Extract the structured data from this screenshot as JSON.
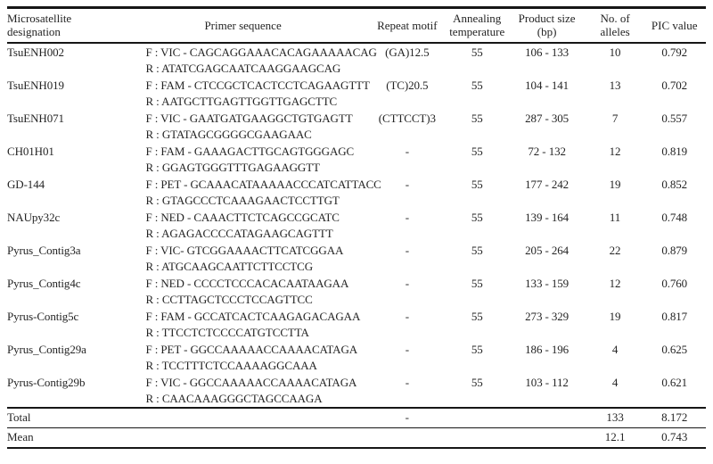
{
  "table": {
    "header": {
      "designation": "Microsatellite\ndesignation",
      "primer": "Primer sequence",
      "motif": "Repeat motif",
      "temperature": "Annealing\ntemperature",
      "product_size": "Product size\n(bp)",
      "alleles": "No. of\nalleles",
      "pic": "PIC value"
    },
    "rows": [
      {
        "designation": "TsuENH002",
        "forward": "F : VIC - CAGCAGGAAACACAGAAAAACAG",
        "reverse": "R : ATATCGAGCAATCAAGGAAGCAG",
        "motif": "(GA)12.5",
        "temperature": "55",
        "product_size": "106 - 133",
        "alleles": "10",
        "pic": "0.792"
      },
      {
        "designation": "TsuENH019",
        "forward": "F : FAM - CTCCGCTCACTCCTCAGAAGTTT",
        "reverse": "R : AATGCTTGAGTTGGTTGAGCTTC",
        "motif": "(TC)20.5",
        "temperature": "55",
        "product_size": "104 - 141",
        "alleles": "13",
        "pic": "0.702"
      },
      {
        "designation": "TsuENH071",
        "forward": "F : VIC - GAATGATGAAGGCTGTGAGTT",
        "reverse": "R : GTATAGCGGGGCGAAGAAC",
        "motif": "(CTTCCT)3",
        "temperature": "55",
        "product_size": "287 - 305",
        "alleles": "7",
        "pic": "0.557"
      },
      {
        "designation": "CH01H01",
        "forward": "F : FAM - GAAAGACTTGCAGTGGGAGC",
        "reverse": "R : GGAGTGGGTTTGAGAAGGTT",
        "motif": "-",
        "temperature": "55",
        "product_size": "72 - 132",
        "alleles": "12",
        "pic": "0.819"
      },
      {
        "designation": "GD-144",
        "forward": "F : PET - GCAAACATAAAAACCCATCATTACC",
        "reverse": "R : GTAGCCCTCAAAGAACTCCTTGT",
        "motif": "-",
        "temperature": "55",
        "product_size": "177 - 242",
        "alleles": "19",
        "pic": "0.852"
      },
      {
        "designation": "NAUpy32c",
        "forward": "F : NED - CAAACTTCTCAGCCGCATC",
        "reverse": "R : AGAGACCCCATAGAAGCAGTTT",
        "motif": "-",
        "temperature": "55",
        "product_size": "139 - 164",
        "alleles": "11",
        "pic": "0.748"
      },
      {
        "designation": "Pyrus_Contig3a",
        "forward": "F : VIC- GTCGGAAAACTTCATCGGAA",
        "reverse": "R : ATGCAAGCAATTCTTCCTCG",
        "motif": "-",
        "temperature": "55",
        "product_size": "205 - 264",
        "alleles": "22",
        "pic": "0.879"
      },
      {
        "designation": "Pyrus_Contig4c",
        "forward": "F : NED - CCCCTCCCACACAATAAGAA",
        "reverse": "R : CCTTAGCTCCCTCCAGTTCC",
        "motif": "-",
        "temperature": "55",
        "product_size": "133 - 159",
        "alleles": "12",
        "pic": "0.760"
      },
      {
        "designation": "Pyrus-Contig5c",
        "forward": "F : FAM - GCCATCACTCAAGAGACAGAA",
        "reverse": "R : TTCCTCTCCCCATGTCCTTA",
        "motif": "-",
        "temperature": "55",
        "product_size": "273 - 329",
        "alleles": "19",
        "pic": "0.817"
      },
      {
        "designation": "Pyrus_Contig29a",
        "forward": "F : PET - GGCCAAAAACCAAAACATAGA",
        "reverse": "R : TCCTTTCTCCAAAAGGCAAA",
        "motif": "-",
        "temperature": "55",
        "product_size": "186 - 196",
        "alleles": "4",
        "pic": "0.625"
      },
      {
        "designation": "Pyrus-Contig29b",
        "forward": "F : VIC - GGCCAAAAACCAAAACATAGA",
        "reverse": "R : CAACAAAGGGCTAGCCAAGA",
        "motif": "-",
        "temperature": "55",
        "product_size": "103 - 112",
        "alleles": "4",
        "pic": "0.621"
      }
    ],
    "total": {
      "label": "Total",
      "motif": "-",
      "alleles": "133",
      "pic": "8.172"
    },
    "mean": {
      "label": "Mean",
      "alleles": "12.1",
      "pic": "0.743"
    }
  }
}
